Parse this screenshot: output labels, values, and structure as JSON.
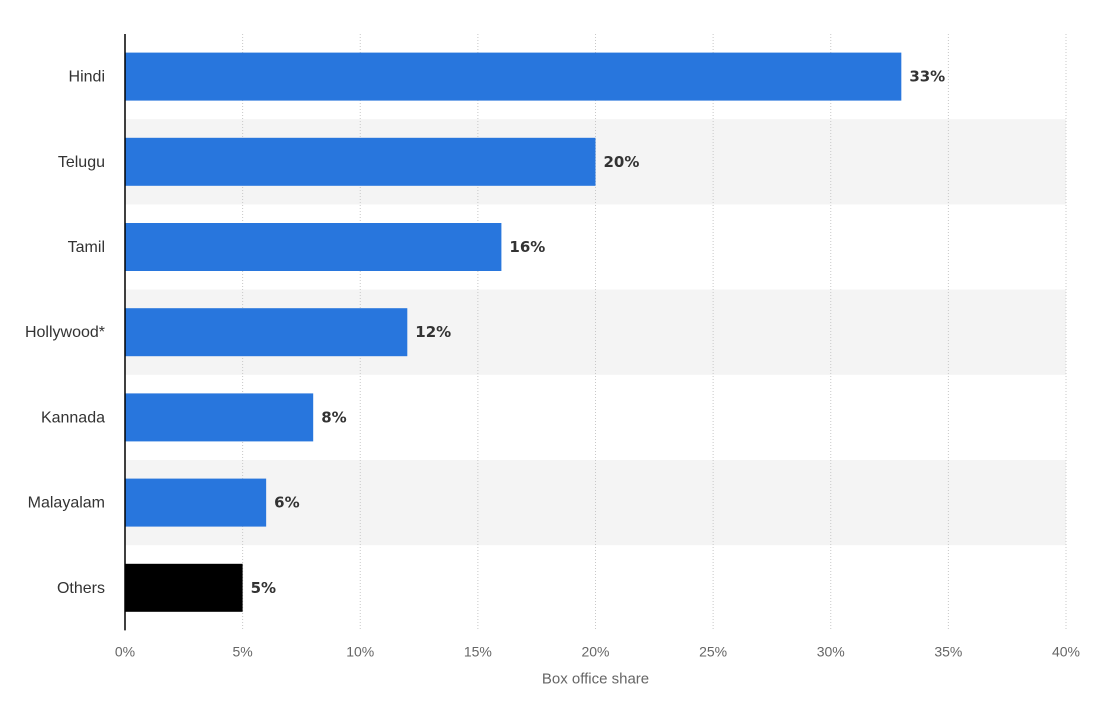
{
  "chart_data": {
    "type": "bar",
    "orientation": "horizontal",
    "categories": [
      "Hindi",
      "Telugu",
      "Tamil",
      "Hollywood*",
      "Kannada",
      "Malayalam",
      "Others"
    ],
    "values": [
      33,
      20,
      16,
      12,
      8,
      6,
      5
    ],
    "value_labels": [
      "33%",
      "20%",
      "16%",
      "12%",
      "8%",
      "6%",
      "5%"
    ],
    "bar_colors": [
      "#2876dd",
      "#2876dd",
      "#2876dd",
      "#2876dd",
      "#2876dd",
      "#2876dd",
      "#000000"
    ],
    "xlabel": "Box office share",
    "ylabel": "",
    "xlim": [
      0,
      40
    ],
    "x_ticks": [
      0,
      5,
      10,
      15,
      20,
      25,
      30,
      35,
      40
    ],
    "x_tick_labels": [
      "0%",
      "5%",
      "10%",
      "15%",
      "20%",
      "25%",
      "30%",
      "35%",
      "40%"
    ],
    "grid": "vertical dotted",
    "legend": "none",
    "alternating_row_shading": true
  },
  "colors": {
    "bar": "#2876dd",
    "highlight_bar": "#000000",
    "row_shade": "#f4f4f4",
    "grid": "#c8c8c8",
    "axis": "#000000"
  }
}
